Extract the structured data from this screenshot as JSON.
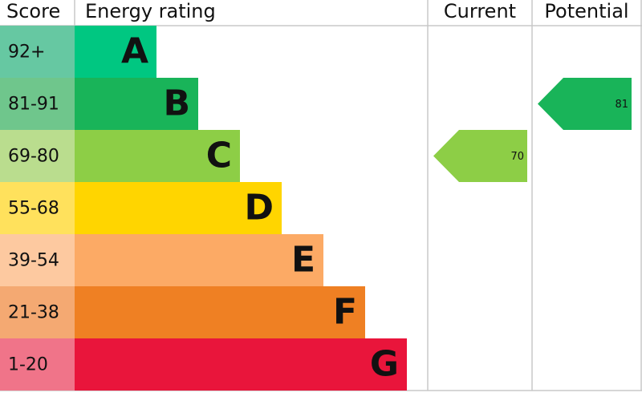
{
  "header": {
    "score": "Score",
    "rating": "Energy rating",
    "current": "Current",
    "potential": "Potential"
  },
  "bands": [
    {
      "score": "92+",
      "letter": "A",
      "color": "#00c781",
      "score_color": "#66c8a2"
    },
    {
      "score": "81-91",
      "letter": "B",
      "color": "#19b459",
      "score_color": "#6fc68c"
    },
    {
      "score": "69-80",
      "letter": "C",
      "color": "#8dce46",
      "score_color": "#badd8e"
    },
    {
      "score": "55-68",
      "letter": "D",
      "color": "#ffd500",
      "score_color": "#ffe15c"
    },
    {
      "score": "39-54",
      "letter": "E",
      "color": "#fcaa65",
      "score_color": "#fdc9a0"
    },
    {
      "score": "21-38",
      "letter": "F",
      "color": "#ef8023",
      "score_color": "#f4a972"
    },
    {
      "score": "1-20",
      "letter": "G",
      "color": "#e9153b",
      "score_color": "#f07489"
    }
  ],
  "current": 70,
  "potential": 81
}
